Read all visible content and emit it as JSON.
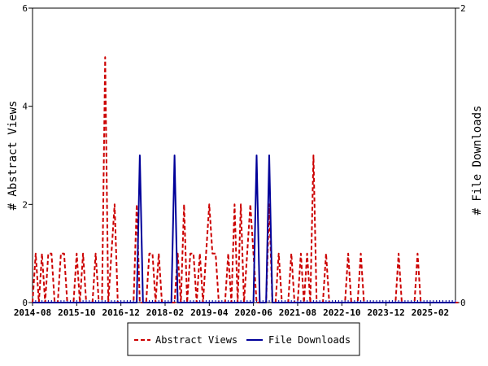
{
  "chart_data": {
    "type": "line",
    "ylabel_left": "# Abstract Views",
    "ylabel_right": "# File Downloads",
    "ylim_left": [
      0,
      6
    ],
    "ylim_right": [
      0,
      2
    ],
    "yticks_left": [
      "0",
      "2",
      "4",
      "6"
    ],
    "yticks_right": [
      "0",
      "2"
    ],
    "xticks": [
      "2014-08",
      "2015-10",
      "2016-12",
      "2018-02",
      "2019-04",
      "2020-06",
      "2021-08",
      "2022-10",
      "2023-12",
      "2025-02"
    ],
    "grid": false,
    "legend_placement": "bottom-center",
    "x_start": "2014-08",
    "x_end": "2025-10",
    "series": [
      {
        "name": "Abstract Views",
        "axis": "left",
        "color": "#cc0000",
        "style": "dashed",
        "values": [
          0,
          1,
          0,
          1,
          0,
          1,
          1,
          0,
          0,
          1,
          1,
          0,
          0,
          0,
          1,
          0,
          1,
          0,
          0,
          0,
          1,
          0,
          0,
          5,
          0,
          1,
          2,
          0,
          0,
          0,
          0,
          0,
          0,
          2,
          0,
          0,
          0,
          1,
          1,
          0,
          1,
          0,
          0,
          0,
          0,
          0,
          1,
          0,
          2,
          0,
          1,
          1,
          0,
          1,
          0,
          1,
          2,
          1,
          1,
          0,
          0,
          0,
          1,
          0,
          2,
          0,
          2,
          0,
          1,
          2,
          1,
          0,
          0,
          0,
          0,
          2,
          0,
          0,
          1,
          0,
          0,
          0,
          1,
          0,
          0,
          1,
          0,
          1,
          0,
          3,
          0,
          0,
          0,
          1,
          0,
          0,
          0,
          0,
          0,
          0,
          1,
          0,
          0,
          0,
          1,
          0,
          0,
          0,
          0,
          0,
          0,
          0,
          0,
          0,
          0,
          0,
          1,
          0,
          0,
          0,
          0,
          0,
          1,
          0,
          0,
          0,
          0,
          0,
          0,
          0,
          0,
          0,
          0,
          0,
          0,
          0
        ]
      },
      {
        "name": "File Downloads",
        "axis": "right",
        "color": "#000099",
        "style": "solid",
        "values": [
          0,
          0,
          0,
          0,
          0,
          0,
          0,
          0,
          0,
          0,
          0,
          0,
          0,
          0,
          0,
          0,
          0,
          0,
          0,
          0,
          0,
          0,
          0,
          0,
          0,
          0,
          0,
          0,
          0,
          0,
          0,
          0,
          0,
          0,
          1,
          0,
          0,
          0,
          0,
          0,
          0,
          0,
          0,
          0,
          0,
          1,
          0,
          0,
          0,
          0,
          0,
          0,
          0,
          0,
          0,
          0,
          0,
          0,
          0,
          0,
          0,
          0,
          0,
          0,
          0,
          0,
          0,
          0,
          0,
          0,
          0,
          1,
          0,
          0,
          0,
          1,
          0,
          0,
          0,
          0,
          0,
          0,
          0,
          0,
          0,
          0,
          0,
          0,
          0,
          0,
          0,
          0,
          0,
          0,
          0,
          0,
          0,
          0,
          0,
          0,
          0,
          0,
          0,
          0,
          0,
          0,
          0,
          0,
          0,
          0,
          0,
          0,
          0,
          0,
          0,
          0,
          0,
          0,
          0,
          0,
          0,
          0,
          0,
          0,
          0,
          0,
          0,
          0,
          0,
          0,
          0,
          0,
          0,
          0,
          0
        ]
      }
    ]
  }
}
